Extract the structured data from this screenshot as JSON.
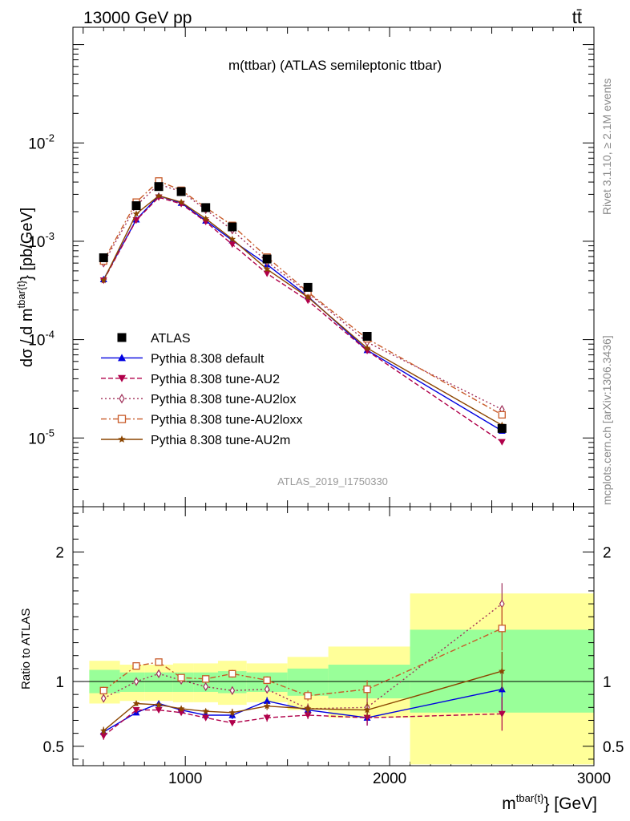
{
  "header": {
    "energy_label": "13000 GeV pp",
    "process_label": "tt̄",
    "plot_title": "m(ttbar) (ATLAS semileptonic ttbar)",
    "analysis_id": "ATLAS_2019_I1750330",
    "side_text_top": "Rivet 3.1.10, ≥ 2.1M events",
    "side_text_bottom": "mcplots.cern.ch [arXiv:1306.3436]"
  },
  "axes": {
    "ylabel_main": "dσ / d m^{tbar{t}} [pb/GeV]",
    "ylabel_main_base": "dσ / d m",
    "ylabel_main_sup": "tbar{t}",
    "ylabel_main_tail": "} [pb/GeV]",
    "ylabel_ratio": "Ratio to ATLAS",
    "xlabel_base": "m",
    "xlabel_sup": "tbar{t}",
    "xlabel_tail": "} [GeV]"
  },
  "chart_data": [
    {
      "type": "scatter",
      "panel": "main",
      "y_scale": "log",
      "x_range": [
        450,
        3000
      ],
      "y_range": [
        2e-06,
        0.15
      ],
      "y_ticks": [
        "10^-2",
        "10^-3",
        "10^-4",
        "10^-5"
      ],
      "x_ticks": [
        1000,
        2000,
        3000
      ],
      "legend_position": "lower-left",
      "x": [
        600,
        760,
        870,
        980,
        1100,
        1230,
        1400,
        1600,
        1890,
        2550
      ],
      "series": [
        {
          "name": "ATLAS",
          "color": "#000000",
          "marker": "square-filled",
          "line": "none",
          "values": [
            0.00068,
            0.0023,
            0.0036,
            0.0032,
            0.0022,
            0.0014,
            0.00066,
            0.00034,
            0.000108,
            1.25e-05
          ]
        },
        {
          "name": "Pythia 8.308 default",
          "color": "#0000e0",
          "marker": "triangle-up",
          "line": "solid",
          "values": [
            0.00041,
            0.00166,
            0.0029,
            0.00245,
            0.00162,
            0.00102,
            0.00058,
            0.000275,
            7.8e-05,
            1.18e-05
          ]
        },
        {
          "name": "Pythia 8.308 tune-AU2",
          "color": "#b0004a",
          "marker": "triangle-down",
          "line": "dashed",
          "values": [
            0.0004,
            0.00164,
            0.0028,
            0.0024,
            0.00158,
            0.00093,
            0.00047,
            0.00025,
            7.7e-05,
            9.1e-06
          ]
        },
        {
          "name": "Pythia 8.308 tune-AU2lox",
          "color": "#a0305a",
          "marker": "diamond-open",
          "line": "dashdot",
          "values": [
            0.0006,
            0.0023,
            0.0038,
            0.0032,
            0.0021,
            0.0013,
            0.00062,
            0.0003,
            9.4e-05,
            1.95e-05
          ]
        },
        {
          "name": "Pythia 8.308 tune-AU2loxx",
          "color": "#c85a28",
          "marker": "square-open",
          "line": "dashdotdot",
          "values": [
            0.00063,
            0.0025,
            0.0041,
            0.0033,
            0.0022,
            0.00145,
            0.00069,
            0.000305,
            0.000102,
            1.72e-05
          ]
        },
        {
          "name": "Pythia 8.308 tune-AU2m",
          "color": "#8b4500",
          "marker": "star",
          "line": "solid",
          "values": [
            0.0004,
            0.0019,
            0.0029,
            0.0025,
            0.0017,
            0.00105,
            0.00052,
            0.00027,
            8.2e-05,
            1.35e-05
          ]
        }
      ]
    },
    {
      "type": "line",
      "panel": "ratio",
      "x_range": [
        450,
        3000
      ],
      "y_range": [
        0.35,
        2.35
      ],
      "y_ticks": [
        0.5,
        1,
        2
      ],
      "x_ticks": [
        1000,
        2000,
        3000
      ],
      "bands": [
        {
          "x0": 530,
          "x1": 680,
          "green": [
            0.91,
            1.09
          ],
          "yellow": [
            0.83,
            1.16
          ]
        },
        {
          "x0": 680,
          "x1": 800,
          "green": [
            0.92,
            1.07
          ],
          "yellow": [
            0.85,
            1.13
          ]
        },
        {
          "x0": 800,
          "x1": 940,
          "green": [
            0.92,
            1.07
          ],
          "yellow": [
            0.85,
            1.13
          ]
        },
        {
          "x0": 940,
          "x1": 1040,
          "green": [
            0.92,
            1.07
          ],
          "yellow": [
            0.84,
            1.14
          ]
        },
        {
          "x0": 1040,
          "x1": 1160,
          "green": [
            0.92,
            1.07
          ],
          "yellow": [
            0.84,
            1.14
          ]
        },
        {
          "x0": 1160,
          "x1": 1300,
          "green": [
            0.91,
            1.08
          ],
          "yellow": [
            0.82,
            1.16
          ]
        },
        {
          "x0": 1300,
          "x1": 1500,
          "green": [
            0.92,
            1.07
          ],
          "yellow": [
            0.84,
            1.14
          ]
        },
        {
          "x0": 1500,
          "x1": 1700,
          "green": [
            0.89,
            1.1
          ],
          "yellow": [
            0.78,
            1.19
          ]
        },
        {
          "x0": 1700,
          "x1": 2100,
          "green": [
            0.87,
            1.13
          ],
          "yellow": [
            0.72,
            1.27
          ]
        },
        {
          "x0": 2100,
          "x1": 3000,
          "green": [
            0.76,
            1.4
          ],
          "yellow": [
            0.36,
            1.68
          ]
        }
      ],
      "x": [
        600,
        760,
        870,
        980,
        1100,
        1230,
        1400,
        1600,
        1890,
        2550
      ],
      "series": [
        {
          "name": "Pythia 8.308 default",
          "values": [
            0.61,
            0.76,
            0.83,
            0.78,
            0.74,
            0.74,
            0.85,
            0.78,
            0.72,
            0.94
          ],
          "errors": [
            0.03,
            0.02,
            0.02,
            0.02,
            0.02,
            0.03,
            0.03,
            0.03,
            0.06,
            0.16
          ]
        },
        {
          "name": "Pythia 8.308 tune-AU2",
          "values": [
            0.58,
            0.78,
            0.78,
            0.76,
            0.72,
            0.68,
            0.72,
            0.74,
            0.72,
            0.75
          ],
          "errors": [
            0.03,
            0.02,
            0.02,
            0.02,
            0.02,
            0.02,
            0.03,
            0.03,
            0.06,
            0.13
          ]
        },
        {
          "name": "Pythia 8.308 tune-AU2lox",
          "values": [
            0.87,
            1.0,
            1.06,
            1.01,
            0.96,
            0.93,
            0.94,
            0.79,
            0.8,
            1.6
          ],
          "errors": [
            0.03,
            0.02,
            0.02,
            0.02,
            0.02,
            0.03,
            0.03,
            0.04,
            0.07,
            0.16
          ]
        },
        {
          "name": "Pythia 8.308 tune-AU2loxx",
          "values": [
            0.93,
            1.12,
            1.15,
            1.03,
            1.02,
            1.06,
            1.01,
            0.89,
            0.94,
            1.41
          ],
          "errors": [
            0.03,
            0.02,
            0.02,
            0.02,
            0.02,
            0.03,
            0.03,
            0.04,
            0.07,
            0.17
          ]
        },
        {
          "name": "Pythia 8.308 tune-AU2m",
          "values": [
            0.62,
            0.83,
            0.82,
            0.79,
            0.77,
            0.76,
            0.81,
            0.79,
            0.78,
            1.08
          ],
          "errors": [
            0.03,
            0.02,
            0.02,
            0.02,
            0.02,
            0.03,
            0.03,
            0.03,
            0.06,
            0.15
          ]
        }
      ]
    }
  ]
}
